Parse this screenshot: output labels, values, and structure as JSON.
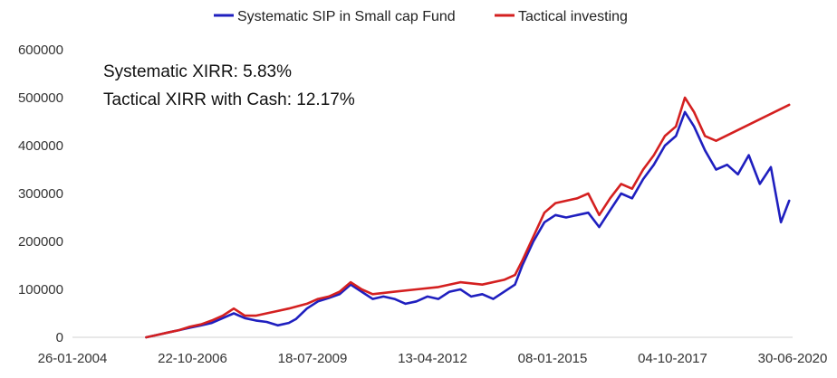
{
  "chart_data": {
    "type": "line",
    "title": "",
    "xlabel": "",
    "ylabel": "",
    "ylim": [
      0,
      600000
    ],
    "y_ticks": [
      0,
      100000,
      200000,
      300000,
      400000,
      500000,
      600000
    ],
    "x_ticks": [
      "26-01-2004",
      "22-10-2006",
      "18-07-2009",
      "13-04-2012",
      "08-01-2015",
      "04-10-2017",
      "30-06-2020"
    ],
    "x_range": [
      "2004-01-26",
      "2020-06-30"
    ],
    "grid": false,
    "legend_position": "top",
    "annotations": [
      "Systematic XIRR: 5.83%",
      "Tactical XIRR with Cash: 12.17%"
    ],
    "series": [
      {
        "name": "Systematic SIP in Small cap Fund",
        "color": "#1f1fbf",
        "x": [
          "2005-10-01",
          "2006-01-01",
          "2006-04-01",
          "2006-07-01",
          "2006-10-01",
          "2007-01-01",
          "2007-04-01",
          "2007-07-01",
          "2007-10-01",
          "2008-01-01",
          "2008-04-01",
          "2008-07-01",
          "2008-10-01",
          "2009-01-01",
          "2009-03-01",
          "2009-06-01",
          "2009-09-01",
          "2009-12-01",
          "2010-03-01",
          "2010-06-01",
          "2010-09-01",
          "2010-12-01",
          "2011-03-01",
          "2011-06-01",
          "2011-09-01",
          "2011-12-01",
          "2012-03-01",
          "2012-06-01",
          "2012-09-01",
          "2012-12-01",
          "2013-03-01",
          "2013-06-01",
          "2013-09-01",
          "2013-12-01",
          "2014-03-01",
          "2014-05-01",
          "2014-08-01",
          "2014-11-01",
          "2015-02-01",
          "2015-05-01",
          "2015-08-01",
          "2015-11-01",
          "2016-02-01",
          "2016-05-01",
          "2016-08-01",
          "2016-11-01",
          "2017-02-01",
          "2017-05-01",
          "2017-08-01",
          "2017-11-01",
          "2018-01-15",
          "2018-04-01",
          "2018-07-01",
          "2018-10-01",
          "2019-01-01",
          "2019-04-01",
          "2019-07-01",
          "2019-10-01",
          "2020-01-01",
          "2020-03-25",
          "2020-06-01"
        ],
        "values": [
          0,
          5000,
          10000,
          15000,
          20000,
          25000,
          30000,
          40000,
          50000,
          40000,
          35000,
          32000,
          25000,
          30000,
          38000,
          60000,
          75000,
          82000,
          90000,
          110000,
          95000,
          80000,
          85000,
          80000,
          70000,
          75000,
          85000,
          80000,
          95000,
          100000,
          85000,
          90000,
          80000,
          95000,
          110000,
          150000,
          200000,
          240000,
          255000,
          250000,
          255000,
          260000,
          230000,
          265000,
          300000,
          290000,
          330000,
          360000,
          400000,
          420000,
          470000,
          440000,
          390000,
          350000,
          360000,
          340000,
          380000,
          320000,
          355000,
          240000,
          285000
        ]
      },
      {
        "name": "Tactical investing",
        "color": "#d42020",
        "x": [
          "2005-10-01",
          "2006-01-01",
          "2006-04-01",
          "2006-07-01",
          "2006-10-01",
          "2007-01-01",
          "2007-04-01",
          "2007-07-01",
          "2007-10-01",
          "2008-01-01",
          "2008-04-01",
          "2008-07-01",
          "2008-10-01",
          "2009-01-01",
          "2009-06-01",
          "2009-09-01",
          "2009-12-01",
          "2010-03-01",
          "2010-06-01",
          "2010-09-01",
          "2010-12-01",
          "2011-06-01",
          "2011-12-01",
          "2012-06-01",
          "2012-12-01",
          "2013-06-01",
          "2013-12-01",
          "2014-03-01",
          "2014-05-01",
          "2014-08-01",
          "2014-11-01",
          "2015-02-01",
          "2015-05-01",
          "2015-08-01",
          "2015-11-01",
          "2016-02-01",
          "2016-05-01",
          "2016-08-01",
          "2016-11-01",
          "2017-02-01",
          "2017-05-01",
          "2017-08-01",
          "2017-11-01",
          "2018-01-15",
          "2018-04-01",
          "2018-07-01",
          "2018-10-01",
          "2019-06-01",
          "2020-06-01"
        ],
        "values": [
          0,
          5000,
          10000,
          15000,
          22000,
          27000,
          35000,
          45000,
          60000,
          45000,
          45000,
          50000,
          55000,
          60000,
          70000,
          80000,
          85000,
          95000,
          115000,
          100000,
          90000,
          95000,
          100000,
          105000,
          115000,
          110000,
          120000,
          130000,
          160000,
          210000,
          260000,
          280000,
          285000,
          290000,
          300000,
          255000,
          290000,
          320000,
          310000,
          350000,
          380000,
          420000,
          440000,
          500000,
          470000,
          420000,
          410000,
          440000,
          485000
        ]
      }
    ]
  }
}
